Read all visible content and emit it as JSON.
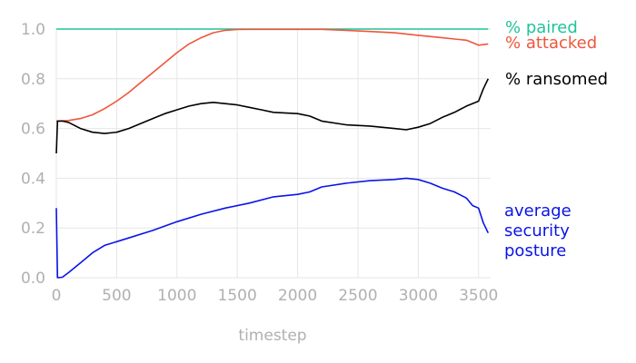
{
  "chart_data": {
    "type": "line",
    "title": "",
    "xlabel": "timestep",
    "ylabel": "",
    "xlim": [
      0,
      3600
    ],
    "ylim": [
      0,
      1.0
    ],
    "x_ticks": [
      0,
      500,
      1000,
      1500,
      2000,
      2500,
      3000,
      3500
    ],
    "y_ticks": [
      0.0,
      0.2,
      0.4,
      0.6,
      0.8,
      1.0
    ],
    "x_tick_labels": [
      "0",
      "500",
      "1000",
      "1500",
      "2000",
      "2500",
      "3000",
      "3500"
    ],
    "y_tick_labels": [
      "0.0",
      "0.2",
      "0.4",
      "0.6",
      "0.8",
      "1.0"
    ],
    "grid": true,
    "legend": "direct labels at right of series",
    "series": [
      {
        "name": "% paired",
        "label_lines": [
          "% paired"
        ],
        "color": "#1fc49a",
        "x": [
          0,
          3580
        ],
        "values": [
          1.0,
          1.0
        ]
      },
      {
        "name": "% attacked",
        "label_lines": [
          "% attacked"
        ],
        "color": "#f0553a",
        "x": [
          0,
          100,
          200,
          300,
          400,
          500,
          600,
          700,
          800,
          900,
          1000,
          1100,
          1200,
          1300,
          1400,
          1500,
          1600,
          1800,
          2000,
          2200,
          2400,
          2600,
          2800,
          3000,
          3200,
          3300,
          3400,
          3500,
          3580
        ],
        "values": [
          0.63,
          0.632,
          0.64,
          0.655,
          0.68,
          0.71,
          0.745,
          0.785,
          0.825,
          0.865,
          0.905,
          0.94,
          0.965,
          0.985,
          0.995,
          0.998,
          0.999,
          0.999,
          0.999,
          0.999,
          0.995,
          0.99,
          0.985,
          0.975,
          0.965,
          0.96,
          0.955,
          0.935,
          0.94
        ]
      },
      {
        "name": "% ransomed",
        "label_lines": [
          "% ransomed"
        ],
        "color": "#000000",
        "x": [
          0,
          10,
          50,
          100,
          200,
          300,
          400,
          500,
          600,
          700,
          800,
          900,
          1000,
          1100,
          1200,
          1300,
          1400,
          1500,
          1600,
          1700,
          1800,
          2000,
          2100,
          2200,
          2400,
          2600,
          2800,
          2900,
          3000,
          3100,
          3200,
          3300,
          3400,
          3500,
          3540,
          3580
        ],
        "values": [
          0.5,
          0.63,
          0.63,
          0.625,
          0.6,
          0.585,
          0.58,
          0.585,
          0.6,
          0.62,
          0.64,
          0.66,
          0.675,
          0.69,
          0.7,
          0.705,
          0.7,
          0.695,
          0.685,
          0.675,
          0.665,
          0.66,
          0.65,
          0.63,
          0.615,
          0.61,
          0.6,
          0.595,
          0.605,
          0.62,
          0.645,
          0.665,
          0.69,
          0.71,
          0.76,
          0.8
        ]
      },
      {
        "name": "average security posture",
        "label_lines": [
          "average",
          "security",
          "posture"
        ],
        "color": "#0a14e8",
        "x": [
          0,
          10,
          50,
          100,
          200,
          300,
          400,
          500,
          600,
          800,
          1000,
          1200,
          1400,
          1600,
          1800,
          2000,
          2100,
          2200,
          2400,
          2600,
          2800,
          2900,
          3000,
          3100,
          3200,
          3300,
          3400,
          3450,
          3500,
          3540,
          3580
        ],
        "values": [
          0.28,
          0.0,
          0.002,
          0.02,
          0.06,
          0.1,
          0.13,
          0.145,
          0.16,
          0.19,
          0.225,
          0.255,
          0.28,
          0.3,
          0.325,
          0.335,
          0.345,
          0.365,
          0.38,
          0.39,
          0.395,
          0.4,
          0.395,
          0.38,
          0.36,
          0.345,
          0.32,
          0.29,
          0.28,
          0.22,
          0.18
        ]
      }
    ]
  }
}
